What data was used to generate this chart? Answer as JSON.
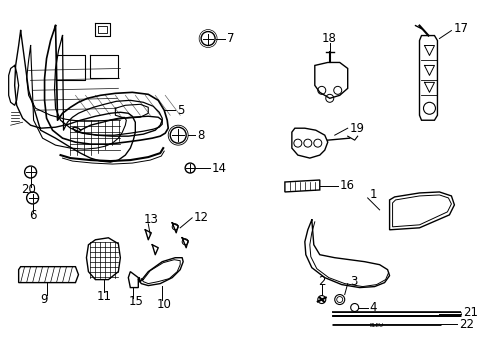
{
  "background_color": "#ffffff",
  "line_color": "#000000",
  "label_fontsize": 8.5,
  "gray_color": "#888888"
}
